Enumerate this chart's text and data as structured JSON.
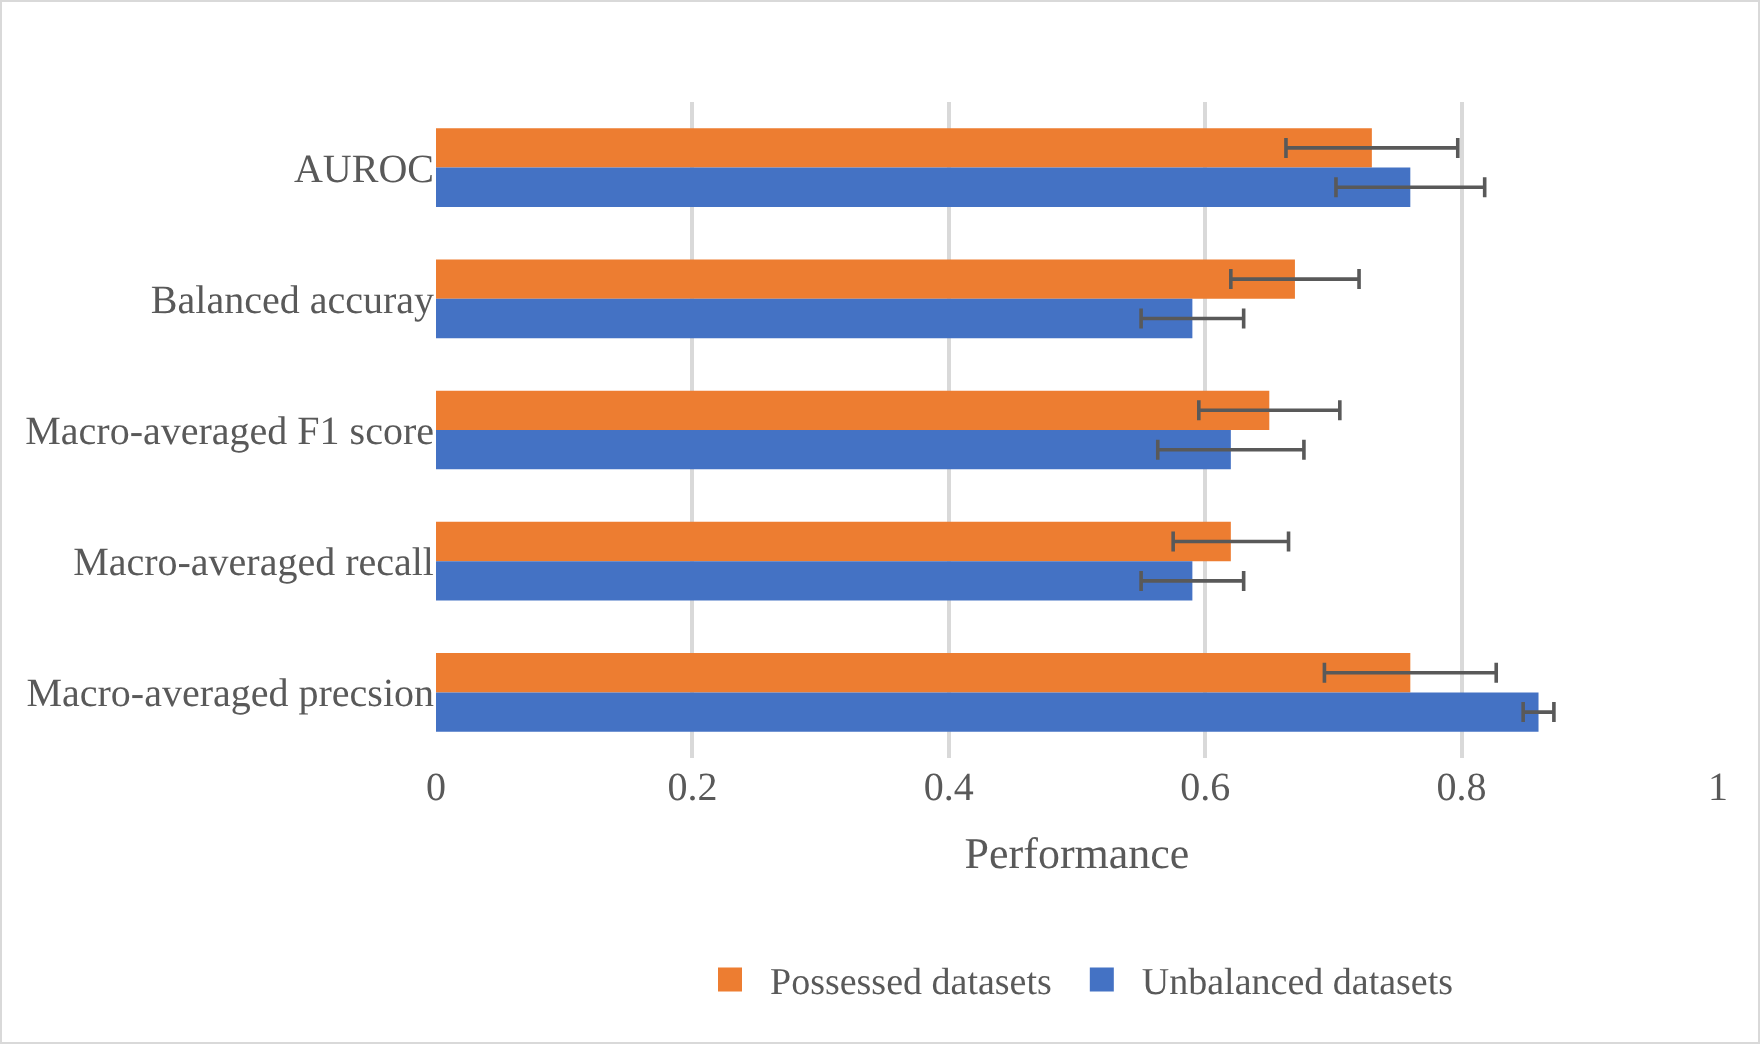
{
  "chart_data": {
    "type": "bar",
    "orientation": "horizontal",
    "xlabel": "Performance",
    "categories": [
      "AUROC",
      "Balanced accuray",
      "Macro-averaged F1 score",
      "Macro-averaged recall",
      "Macro-averaged precsion"
    ],
    "series": [
      {
        "name": "Possessed datasets",
        "color": "#ed7d31",
        "values": [
          0.73,
          0.67,
          0.65,
          0.62,
          0.76
        ],
        "errors": [
          0.067,
          0.05,
          0.055,
          0.045,
          0.067
        ]
      },
      {
        "name": "Unbalanced datasets",
        "color": "#4472c4",
        "values": [
          0.76,
          0.59,
          0.62,
          0.59,
          0.86
        ],
        "errors": [
          0.058,
          0.04,
          0.057,
          0.04,
          0.012
        ]
      }
    ],
    "xlim": [
      0,
      1
    ],
    "xticks": [
      0,
      0.2,
      0.4,
      0.6,
      0.8,
      1
    ],
    "grid": "x",
    "legend": "bottom"
  }
}
